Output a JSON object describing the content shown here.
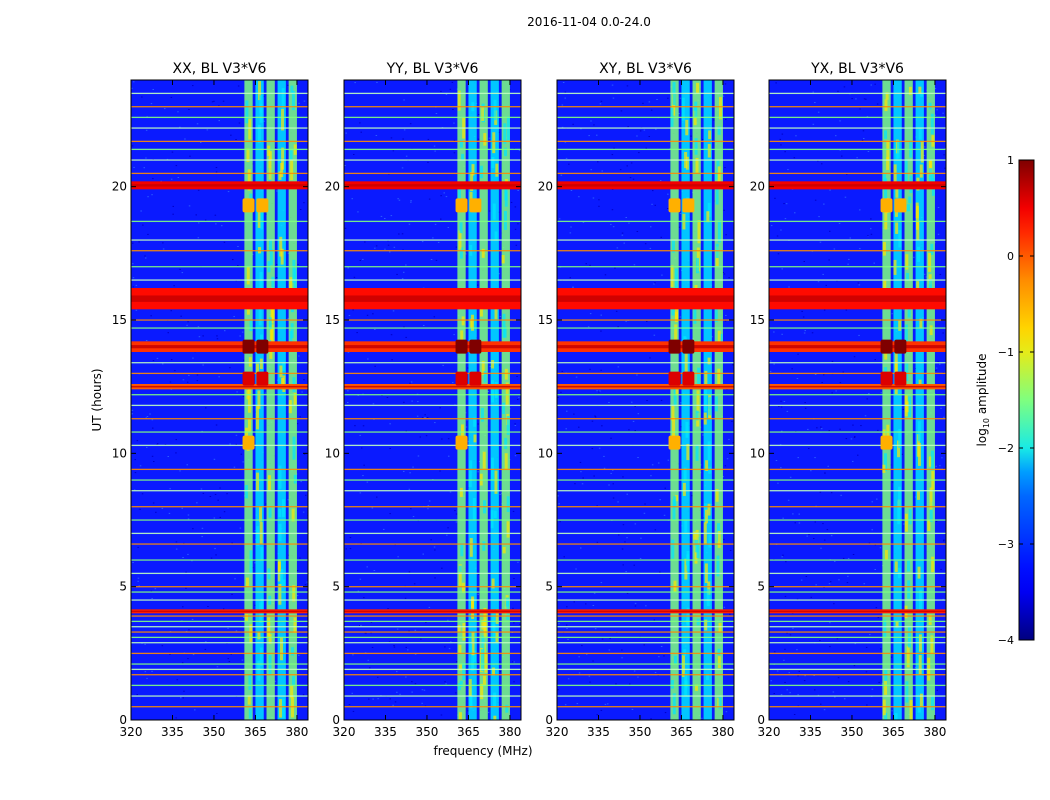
{
  "chart_data": {
    "type": "heatmap",
    "suptitle": "2016-11-04 0.0-24.0",
    "xlabel": "frequency (MHz)",
    "ylabel": "UT (hours)",
    "xlim": [
      320,
      384
    ],
    "ylim": [
      0,
      24
    ],
    "xticks": [
      320,
      335,
      350,
      365,
      380
    ],
    "xtick_labels": [
      "320",
      "335",
      "350",
      "365",
      "380"
    ],
    "yticks": [
      0,
      5,
      10,
      15,
      20
    ],
    "ytick_labels": [
      "0",
      "5",
      "10",
      "15",
      "20"
    ],
    "colormap": "jet",
    "colors": {
      "background": "#0a1aff",
      "low": "#00007f",
      "green": "#7fff7f",
      "cyan": "#00e5ff",
      "yellow": "#ffe600",
      "orange": "#ff8c00",
      "red": "#c80000"
    },
    "colorbar": {
      "label": "log",
      "label_sub": "10",
      "label_rest": " amplitude",
      "range": [
        -4,
        1
      ],
      "ticks": [
        1,
        0,
        -1,
        -2,
        -3,
        -4
      ],
      "tick_labels": [
        "1",
        "0",
        "−1",
        "−2",
        "−3",
        "−4"
      ]
    },
    "panels": [
      {
        "title": "XX, BL V3*V6"
      },
      {
        "title": "YY, BL V3*V6"
      },
      {
        "title": "XY, BL V3*V6"
      },
      {
        "title": "YX, BL V3*V6"
      }
    ],
    "bright_bands_mhz": [
      [
        361,
        364
      ],
      [
        365,
        368
      ],
      [
        369,
        372
      ],
      [
        373,
        376
      ],
      [
        377,
        380
      ]
    ],
    "hot_spots": [
      {
        "f": 362.5,
        "t": 14.0,
        "level": 1.0
      },
      {
        "f": 367.5,
        "t": 14.0,
        "level": 1.0
      },
      {
        "f": 362.5,
        "t": 12.8,
        "level": 0.6
      },
      {
        "f": 367.5,
        "t": 12.8,
        "level": 0.6
      },
      {
        "f": 362.5,
        "t": 19.3,
        "level": -0.5
      },
      {
        "f": 367.5,
        "t": 19.3,
        "level": -0.5
      },
      {
        "f": 362.5,
        "t": 10.4,
        "level": -0.5
      }
    ],
    "strong_rfi_hours": [
      {
        "t0": 19.9,
        "t1": 20.2,
        "level": 0.5
      },
      {
        "t0": 15.4,
        "t1": 16.2,
        "level": 0.4
      },
      {
        "t0": 13.8,
        "t1": 14.2,
        "level": 0.2
      },
      {
        "t0": 12.4,
        "t1": 12.6,
        "level": 0.0
      },
      {
        "t0": 4.0,
        "t1": 4.15,
        "level": 0.3
      }
    ],
    "rfi_lines_hours": [
      0.5,
      0.9,
      1.3,
      1.7,
      1.9,
      2.1,
      2.5,
      2.9,
      3.1,
      3.3,
      3.5,
      3.7,
      3.9,
      4.5,
      4.8,
      5.0,
      5.5,
      6.0,
      6.6,
      7.0,
      7.5,
      8.0,
      8.6,
      9.0,
      9.4,
      10.3,
      10.8,
      11.3,
      11.8,
      12.2,
      13.0,
      13.4,
      14.7,
      15.0,
      16.5,
      17.0,
      17.6,
      18.0,
      18.7,
      20.5,
      21.0,
      21.4,
      21.7,
      22.2,
      22.6,
      23.0,
      23.5
    ]
  }
}
